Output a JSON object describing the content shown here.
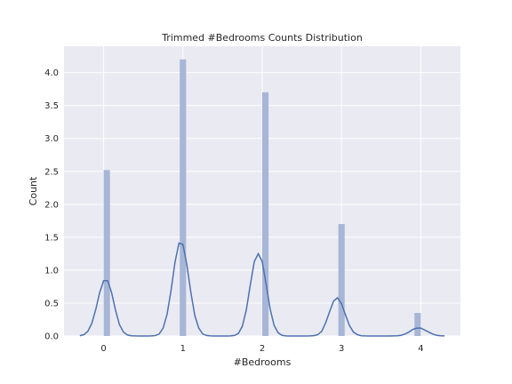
{
  "chart_data": {
    "type": "bar",
    "title": "Trimmed #Bedrooms Counts Distribution",
    "xlabel": "#Bedrooms",
    "ylabel": "Count",
    "xlim": [
      -0.5,
      4.5
    ],
    "ylim": [
      0,
      4.4
    ],
    "xticks": [
      0,
      1,
      2,
      3,
      4
    ],
    "yticks": [
      0.0,
      0.5,
      1.0,
      1.5,
      2.0,
      2.5,
      3.0,
      3.5,
      4.0
    ],
    "ytick_labels": [
      "0.0",
      "0.5",
      "1.0",
      "1.5",
      "2.0",
      "2.5",
      "3.0",
      "3.5",
      "4.0"
    ],
    "grid": true,
    "colors": {
      "background": "#eaeaf2",
      "bar": "#a7b6d6",
      "line": "#4c72b0",
      "grid": "#ffffff"
    },
    "bars": [
      {
        "x_start": 0.0,
        "x_end": 0.08,
        "height": 2.52
      },
      {
        "x_start": 0.96,
        "x_end": 1.04,
        "height": 4.2
      },
      {
        "x_start": 2.0,
        "x_end": 2.08,
        "height": 3.7
      },
      {
        "x_start": 2.96,
        "x_end": 3.04,
        "height": 1.7
      },
      {
        "x_start": 3.92,
        "x_end": 4.0,
        "height": 0.35
      }
    ],
    "kde": {
      "x": [
        -0.3,
        -0.25,
        -0.2,
        -0.15,
        -0.1,
        -0.05,
        0.0,
        0.05,
        0.1,
        0.15,
        0.2,
        0.25,
        0.3,
        0.35,
        0.4,
        0.45,
        0.5,
        0.55,
        0.6,
        0.65,
        0.7,
        0.75,
        0.8,
        0.85,
        0.9,
        0.95,
        1.0,
        1.05,
        1.1,
        1.15,
        1.2,
        1.25,
        1.3,
        1.35,
        1.4,
        1.45,
        1.5,
        1.55,
        1.6,
        1.65,
        1.7,
        1.75,
        1.8,
        1.85,
        1.9,
        1.95,
        2.0,
        2.05,
        2.1,
        2.15,
        2.2,
        2.25,
        2.3,
        2.35,
        2.4,
        2.45,
        2.5,
        2.55,
        2.6,
        2.65,
        2.7,
        2.75,
        2.8,
        2.85,
        2.9,
        2.95,
        3.0,
        3.05,
        3.1,
        3.15,
        3.2,
        3.25,
        3.3,
        3.35,
        3.4,
        3.45,
        3.5,
        3.55,
        3.6,
        3.65,
        3.7,
        3.75,
        3.8,
        3.85,
        3.9,
        3.95,
        4.0,
        4.05,
        4.1,
        4.15,
        4.2,
        4.25,
        4.3
      ],
      "y": [
        0.005,
        0.02,
        0.07,
        0.19,
        0.4,
        0.66,
        0.84,
        0.84,
        0.66,
        0.39,
        0.17,
        0.06,
        0.015,
        0.004,
        0.001,
        0.0,
        0.0,
        0.0,
        0.001,
        0.006,
        0.03,
        0.12,
        0.33,
        0.69,
        1.12,
        1.41,
        1.39,
        1.08,
        0.66,
        0.31,
        0.12,
        0.03,
        0.008,
        0.002,
        0.0,
        0.0,
        0.0,
        0.0,
        0.001,
        0.008,
        0.04,
        0.15,
        0.4,
        0.78,
        1.13,
        1.25,
        1.13,
        0.78,
        0.41,
        0.16,
        0.05,
        0.01,
        0.002,
        0.0,
        0.0,
        0.0,
        0.0,
        0.0,
        0.001,
        0.005,
        0.02,
        0.07,
        0.2,
        0.37,
        0.53,
        0.58,
        0.49,
        0.32,
        0.16,
        0.06,
        0.02,
        0.004,
        0.001,
        0.0,
        0.0,
        0.0,
        0.0,
        0.0,
        0.0,
        0.001,
        0.003,
        0.01,
        0.03,
        0.06,
        0.1,
        0.12,
        0.12,
        0.09,
        0.06,
        0.03,
        0.01,
        0.004,
        0.001
      ]
    }
  }
}
